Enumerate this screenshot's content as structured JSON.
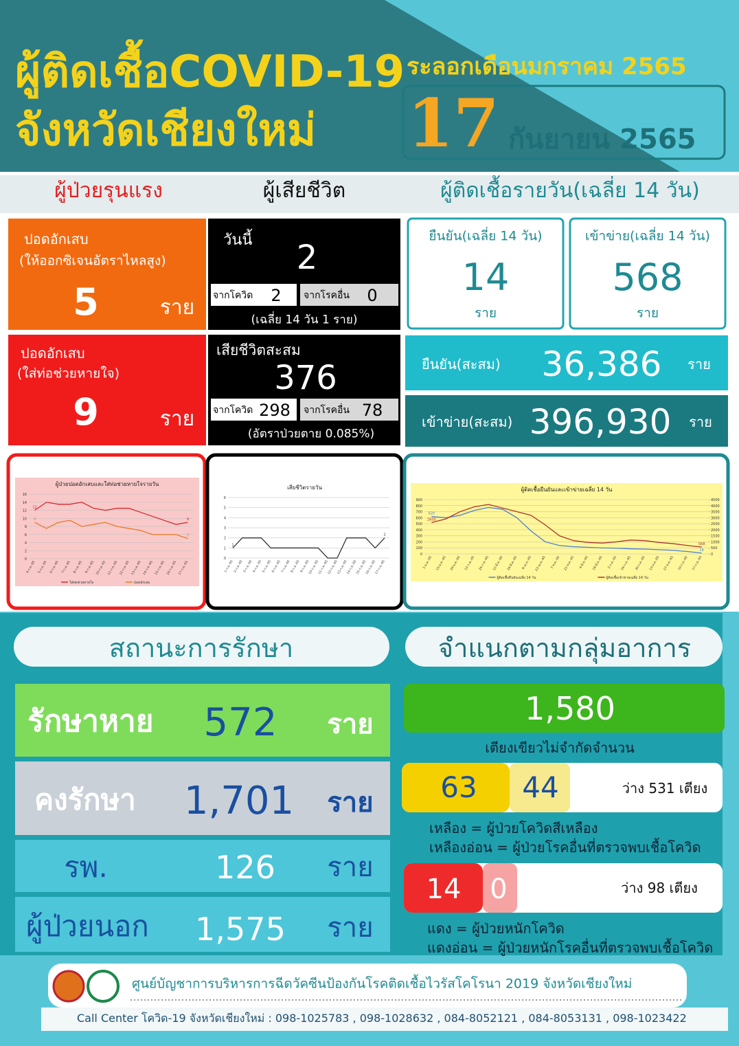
{
  "header": {
    "title_line1": "ผู้ติดเชื้อCOVID-19",
    "wave": "ระลอกเดือนมกราคม 2565",
    "title_line2": "จังหวัดเชียงใหม่",
    "day": "17",
    "month_year": "กันยายน 2565"
  },
  "section_heads": {
    "severe": "ผู้ป่วยรุนแรง",
    "deaths": "ผู้เสียชีวิต",
    "daily": "ผู้ติดเชื้อรายวัน(เฉลี่ย 14 วัน)"
  },
  "severe": [
    {
      "label1": "ปอดอักเสบ",
      "label2": "(ให้ออกซิเจนอัตราไหลสูง)",
      "value": "5",
      "unit": "ราย"
    },
    {
      "label1": "ปอดอักเสบ",
      "label2": "(ใส่ท่อช่วยหายใจ)",
      "value": "9",
      "unit": "ราย"
    }
  ],
  "deaths_today": {
    "label": "วันนี้",
    "value": "2",
    "covid_label": "จากโควิด",
    "covid": "2",
    "other_label": "จากโรคอื่น",
    "other": "0",
    "note": "(เฉลี่ย 14 วัน  1 ราย)"
  },
  "deaths_total": {
    "label": "เสียชีวิตสะสม",
    "value": "376",
    "covid_label": "จากโควิด",
    "covid": "298",
    "other_label": "จากโรคอื่น",
    "other": "78",
    "note": "(อัตราป่วยตาย 0.085%)"
  },
  "daily": [
    {
      "label": "ยืนยัน(เฉลี่ย 14 วัน)",
      "value": "14",
      "unit": "ราย"
    },
    {
      "label": "เข้าข่าย(เฉลี่ย 14 วัน)",
      "value": "568",
      "unit": "ราย"
    }
  ],
  "cumulative": [
    {
      "label": "ยืนยัน(สะสม)",
      "value": "36,386",
      "unit": "ราย"
    },
    {
      "label": "เข้าข่าย(สะสม)",
      "value": "396,930",
      "unit": "ราย"
    }
  ],
  "charts": [
    {
      "type": "line",
      "title": "ผู้ป่วยปอดอักเสบและใส่ท่อช่วยหายใจรายวัน",
      "categories": [
        "4-ก.ย.-65",
        "5-ก.ย.-65",
        "6-ก.ย.-65",
        "7-ก.ย.-65",
        "8-ก.ย.-65",
        "9-ก.ย.-65",
        "10-ก.ย.-65",
        "11-ก.ย.-65",
        "12-ก.ย.-65",
        "13-ก.ย.-65",
        "14-ก.ย.-65",
        "15-ก.ย.-65",
        "16-ก.ย.-65",
        "17-ก.ย.-65"
      ],
      "series": [
        {
          "name": "ใส่ท่อช่วยหายใจ",
          "color": "#d9262e",
          "values": [
            12,
            14,
            13.5,
            13.5,
            14,
            12.5,
            12,
            12.5,
            12.5,
            11.5,
            10.5,
            9.5,
            8.5,
            9
          ]
        },
        {
          "name": "ปอดอักเสบ",
          "color": "#e8792a",
          "values": [
            9,
            7.5,
            9,
            9.5,
            8,
            8.5,
            9,
            8,
            7.5,
            7,
            6,
            6,
            6,
            5
          ]
        }
      ],
      "ylim": [
        0,
        16
      ],
      "yticks": [
        0,
        2,
        4,
        6,
        8,
        10,
        12,
        14,
        16
      ]
    },
    {
      "type": "line",
      "title": "เสียชีวิตรายวัน",
      "categories": [
        "1-ก.ย.-65",
        "2-ก.ย.-65",
        "3-ก.ย.-65",
        "4-ก.ย.-65",
        "5-ก.ย.-65",
        "6-ก.ย.-65",
        "7-ก.ย.-65",
        "8-ก.ย.-65",
        "9-ก.ย.-65",
        "10-ก.ย.-65",
        "11-ก.ย.-65",
        "12-ก.ย.-65",
        "13-ก.ย.-65",
        "14-ก.ย.-65",
        "15-ก.ย.-65",
        "16-ก.ย.-65",
        "17-ก.ย.-65"
      ],
      "series": [
        {
          "color": "#333333",
          "values": [
            1,
            2,
            2,
            2,
            1,
            1,
            1,
            1,
            1,
            1,
            0,
            0,
            2,
            2,
            2,
            1,
            2
          ]
        }
      ],
      "ylim": [
        0,
        6
      ],
      "yticks": [
        0,
        1,
        2,
        3,
        4,
        5,
        6
      ]
    },
    {
      "type": "line",
      "title": "ผู้ติดเชื้อยืนยันและเข้าข่ายเฉลี่ย 14 วัน",
      "categories": [
        "1-ม.ค.-65",
        "15-ม.ค.-65",
        "29-ม.ค.-65",
        "12-ก.พ.-65",
        "26-ก.พ.-65",
        "12-มี.ค.-65",
        "26-มี.ค.-65",
        "9-เม.ย.-65",
        "23-เม.ย.-65",
        "7-พ.ค.-65",
        "21-พ.ค.-65",
        "4-มิ.ย.-65",
        "18-มิ.ย.-65",
        "2-ก.ค.-65",
        "16-ก.ค.-65",
        "30-ก.ค.-65",
        "13-ส.ค.-65",
        "27-ส.ค.-65",
        "10-ก.ย.-65",
        "17-ก.ย.-65"
      ],
      "series": [
        {
          "name": "ผู้ติดเชื้อยืนยันเฉลี่ย 14 วัน",
          "color": "#4a7fd0",
          "values": [
            620,
            600,
            640,
            720,
            770,
            740,
            600,
            380,
            200,
            140,
            120,
            110,
            100,
            95,
            85,
            80,
            70,
            60,
            40,
            14
          ]
        },
        {
          "name": "ผู้ติดเชื้อเข้าข่ายเฉลี่ย 14 วัน",
          "color": "#b0322e",
          "axis": "y2",
          "values": [
            2600,
            2900,
            3500,
            3900,
            4100,
            3800,
            3500,
            3200,
            2400,
            1500,
            1100,
            950,
            900,
            1000,
            1150,
            1100,
            950,
            850,
            700,
            568
          ]
        }
      ],
      "ylim": [
        0,
        900
      ],
      "yticks": [
        0,
        100,
        200,
        300,
        400,
        500,
        600,
        700,
        800,
        900
      ],
      "y2lim": [
        0,
        4500
      ],
      "y2ticks": [
        0,
        500,
        1000,
        1500,
        2000,
        2500,
        3000,
        3500,
        4000,
        4500
      ]
    }
  ],
  "treatment": {
    "heading": "สถานะการรักษา",
    "rows": [
      {
        "label": "รักษาหาย",
        "value": "572",
        "unit": "ราย"
      },
      {
        "label": "คงรักษา",
        "value": "1,701",
        "unit": "ราย"
      },
      {
        "label": "รพ.",
        "value": "126",
        "unit": "ราย"
      },
      {
        "label": "ผู้ป่วยนอก",
        "value": "1,575",
        "unit": "ราย"
      }
    ]
  },
  "groups": {
    "heading": "จำแนกตามกลุ่มอาการ",
    "green": {
      "value": "1,580",
      "note": "เตียงเขียวไม่จำกัดจำนวน"
    },
    "yellow": {
      "value": "63",
      "light_value": "44",
      "vacant": "ว่าง 531 เตียง",
      "legend1": "เหลือง = ผู้ป่วยโควิดสีเหลือง",
      "legend2": "เหลืองอ่อน = ผู้ป่วยโรคอื่นที่ตรวจพบเชื้อโควิด"
    },
    "red": {
      "value": "14",
      "light_value": "0",
      "vacant": "ว่าง 98 เตียง",
      "legend1": "แดง = ผู้ป่วยหนักโควิด",
      "legend2": "แดงอ่อน = ผู้ป่วยหนักโรคอื่นที่ตรวจพบเชื้อโควิด"
    }
  },
  "footer": {
    "org": "ศูนย์บัญชาการบริหารการฉีดวัคซีนป้องกันโรคติดเชื้อไวรัสโคโรนา 2019 จังหวัดเชียงใหม่",
    "call_center": "Call Center โควิด-19 จังหวัดเชียงใหม่ : 098-1025783 , 098-1028632 , 084-8052121 , 084-8053131 , 098-1023422"
  }
}
